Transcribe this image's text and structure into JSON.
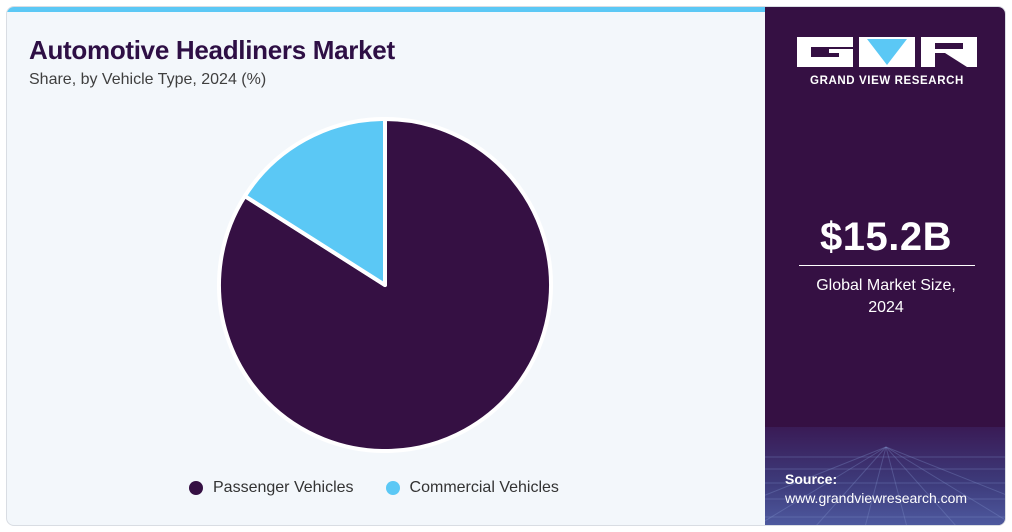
{
  "header": {
    "title": "Automotive Headliners Market",
    "subtitle": "Share, by Vehicle Type, 2024 (%)"
  },
  "chart_data": {
    "type": "pie",
    "title": "Automotive Headliners Market",
    "subtitle": "Share, by Vehicle Type, 2024 (%)",
    "legend_position": "bottom",
    "slices": [
      {
        "label": "Passenger Vehicles",
        "value": 84,
        "color": "#351043"
      },
      {
        "label": "Commercial Vehicles",
        "value": 16,
        "color": "#5bc8f5"
      }
    ],
    "start_angle_deg": 0,
    "direction": "clockwise"
  },
  "brand": {
    "name": "GRAND VIEW RESEARCH",
    "logo_icon": "gvr-logo-icon"
  },
  "stats": {
    "market_value": "$15.2B",
    "market_label_line1": "Global Market Size,",
    "market_label_line2": "2024"
  },
  "source": {
    "label": "Source:",
    "url": "www.grandviewresearch.com"
  },
  "colors": {
    "brand_dark": "#351043",
    "accent": "#5bc8f5",
    "background": "#f3f7fb"
  }
}
